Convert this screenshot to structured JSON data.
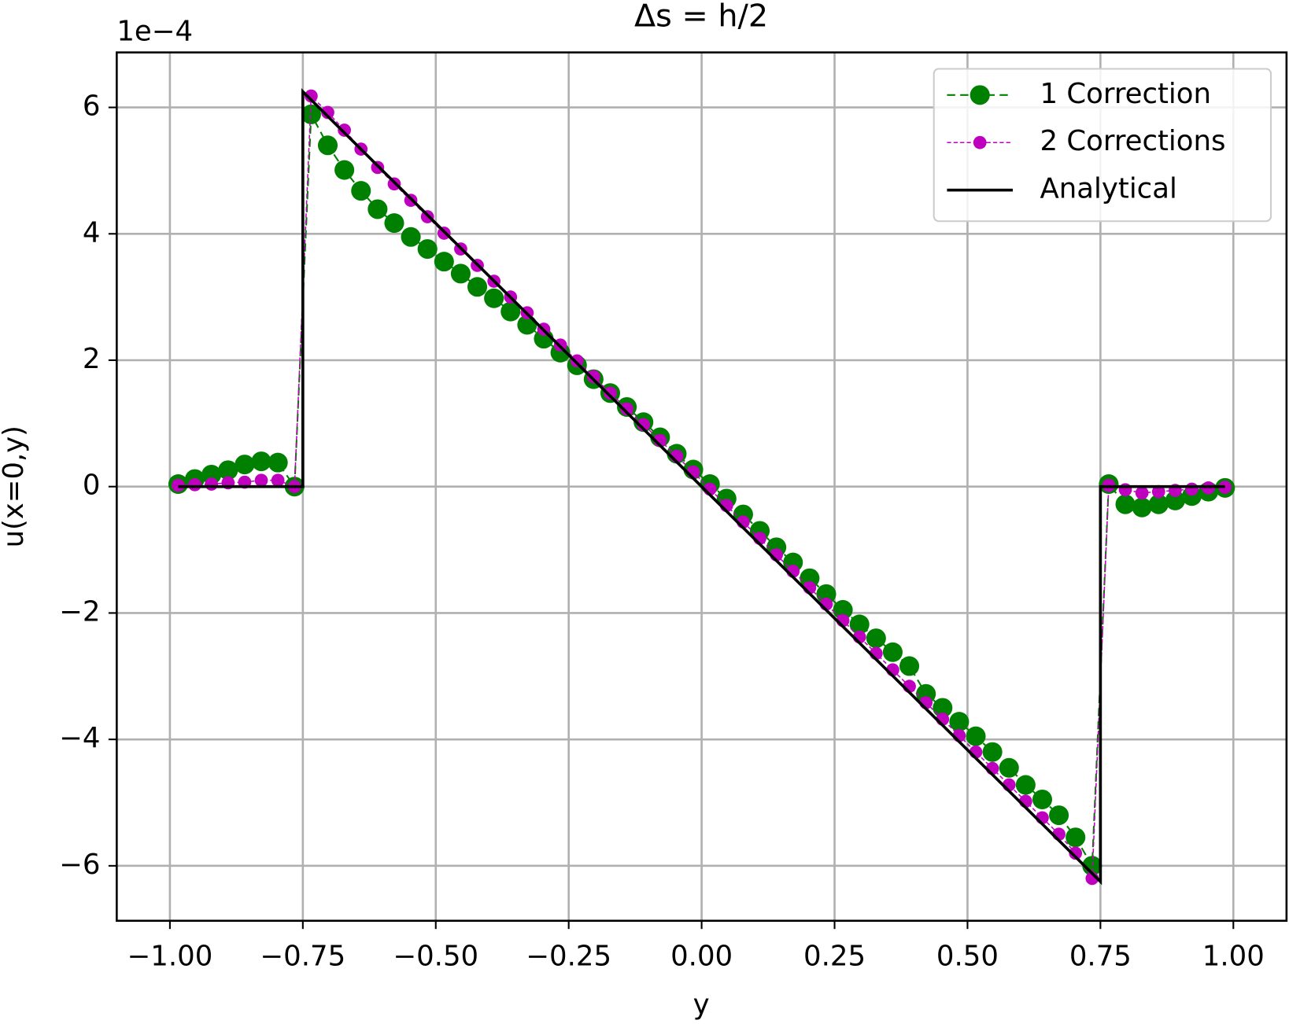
{
  "chart_data": {
    "type": "line",
    "title": "Δs = h/2",
    "xlabel": "y",
    "ylabel": "u(x=0,y)",
    "y_offset_label": "1e−4",
    "xlim": [
      -1.1,
      1.1
    ],
    "ylim": [
      -6.87,
      6.87
    ],
    "xticks": [
      {
        "value": -1,
        "label": "−1.00"
      },
      {
        "value": -0.75,
        "label": "−0.75"
      },
      {
        "value": -0.5,
        "label": "−0.50"
      },
      {
        "value": -0.25,
        "label": "−0.25"
      },
      {
        "value": 0,
        "label": "0.00"
      },
      {
        "value": 0.25,
        "label": "0.25"
      },
      {
        "value": 0.5,
        "label": "0.50"
      },
      {
        "value": 0.75,
        "label": "0.75"
      },
      {
        "value": 1,
        "label": "1.00"
      }
    ],
    "yticks": [
      {
        "value": -6,
        "label": "−6"
      },
      {
        "value": -4,
        "label": "−4"
      },
      {
        "value": -2,
        "label": "−2"
      },
      0,
      2,
      4,
      6
    ],
    "grid": true,
    "legend": "upper right",
    "x": [
      -0.984375,
      -0.953125,
      -0.921875,
      -0.890625,
      -0.859375,
      -0.828125,
      -0.796875,
      -0.765625,
      -0.734375,
      -0.703125,
      -0.671875,
      -0.640625,
      -0.609375,
      -0.578125,
      -0.546875,
      -0.515625,
      -0.484375,
      -0.453125,
      -0.421875,
      -0.390625,
      -0.359375,
      -0.328125,
      -0.296875,
      -0.265625,
      -0.234375,
      -0.203125,
      -0.171875,
      -0.140625,
      -0.109375,
      -0.078125,
      -0.046875,
      -0.015625,
      0.015625,
      0.046875,
      0.078125,
      0.109375,
      0.140625,
      0.171875,
      0.203125,
      0.234375,
      0.265625,
      0.296875,
      0.328125,
      0.359375,
      0.390625,
      0.421875,
      0.453125,
      0.484375,
      0.515625,
      0.546875,
      0.578125,
      0.609375,
      0.640625,
      0.671875,
      0.703125,
      0.734375,
      0.765625,
      0.796875,
      0.828125,
      0.859375,
      0.890625,
      0.921875,
      0.953125,
      0.984375
    ],
    "series": [
      {
        "name": "1 Correction",
        "color": "#008000",
        "style": "dashed",
        "marker_size": 12,
        "values": [
          0.04,
          0.12,
          0.19,
          0.26,
          0.35,
          0.4,
          0.38,
          0,
          5.89,
          5.4,
          5.01,
          4.68,
          4.39,
          4.17,
          3.95,
          3.76,
          3.56,
          3.37,
          3.16,
          2.98,
          2.77,
          2.56,
          2.34,
          2.12,
          1.92,
          1.7,
          1.48,
          1.26,
          1.02,
          0.78,
          0.52,
          0.27,
          0.04,
          -0.19,
          -0.44,
          -0.7,
          -0.96,
          -1.2,
          -1.45,
          -1.7,
          -1.95,
          -2.18,
          -2.4,
          -2.62,
          -2.84,
          -3.28,
          -3.5,
          -3.72,
          -3.95,
          -4.2,
          -4.45,
          -4.72,
          -4.95,
          -5.2,
          -5.55,
          -6.0,
          0.04,
          -0.28,
          -0.33,
          -0.28,
          -0.22,
          -0.15,
          -0.08,
          -0.02
        ]
      },
      {
        "name": "2 Corrections",
        "color": "#bf00bf",
        "style": "dotted",
        "marker_size": 8,
        "values": [
          0.02,
          0.03,
          0.04,
          0.06,
          0.07,
          0.1,
          0.1,
          0,
          6.18,
          5.92,
          5.64,
          5.34,
          5.05,
          4.79,
          4.53,
          4.27,
          4.01,
          3.76,
          3.5,
          3.25,
          3.0,
          2.75,
          2.49,
          2.24,
          1.99,
          1.74,
          1.48,
          1.23,
          0.98,
          0.73,
          0.48,
          0.23,
          -0.04,
          -0.3,
          -0.56,
          -0.82,
          -1.08,
          -1.34,
          -1.6,
          -1.86,
          -2.12,
          -2.38,
          -2.64,
          -2.9,
          -3.16,
          -3.42,
          -3.68,
          -3.94,
          -4.2,
          -4.46,
          -4.72,
          -4.98,
          -5.24,
          -5.5,
          -5.8,
          -6.2,
          0.02,
          -0.05,
          -0.1,
          -0.08,
          -0.06,
          -0.04,
          -0.02,
          -0.01
        ]
      },
      {
        "name": "Analytical",
        "color": "#000000",
        "style": "solid",
        "x": [
          -0.984375,
          -0.75,
          -0.75,
          0.75,
          0.75,
          0.984375
        ],
        "values": [
          0,
          0,
          6.25,
          -6.25,
          0,
          0
        ]
      }
    ]
  }
}
